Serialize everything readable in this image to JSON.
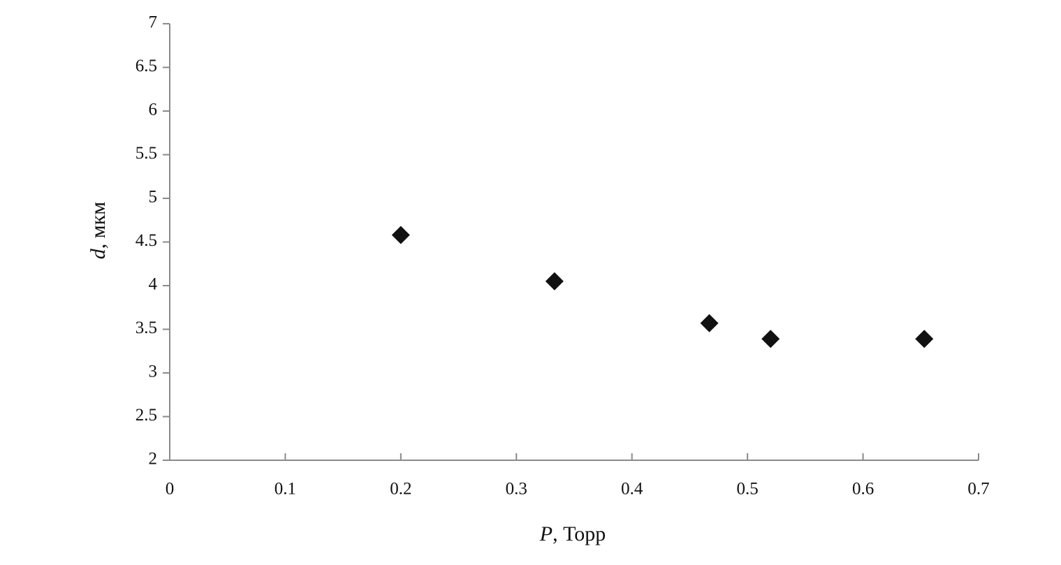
{
  "chart_data": {
    "type": "scatter",
    "xlabel": [
      "P",
      ", Торр"
    ],
    "ylabel": [
      "d",
      ", мкм"
    ],
    "x": [
      0.2,
      0.333,
      0.467,
      0.52,
      0.653
    ],
    "series": [
      {
        "name": "d",
        "color": "#111111",
        "values": [
          4.58,
          4.05,
          3.57,
          3.39,
          3.39
        ]
      }
    ],
    "xlim": [
      0,
      0.7
    ],
    "xticks": [
      0,
      0.1,
      0.2,
      0.3,
      0.4,
      0.5,
      0.6,
      0.7
    ],
    "ylim": [
      2,
      7
    ],
    "yticks": [
      2,
      2.5,
      3,
      3.5,
      4,
      4.5,
      5,
      5.5,
      6,
      6.5,
      7
    ],
    "grid": false
  }
}
